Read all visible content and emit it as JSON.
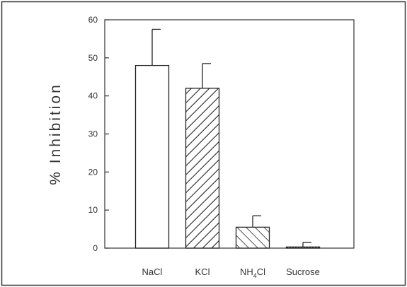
{
  "chart_data": {
    "type": "bar",
    "title": "",
    "xlabel": "",
    "ylabel": "% Inhibition",
    "ylim": [
      0,
      60
    ],
    "yticks": [
      0,
      10,
      20,
      30,
      40,
      50,
      60
    ],
    "grid": false,
    "categories": [
      {
        "label": "NaCl",
        "base": "NaCl",
        "sub": "",
        "tail": ""
      },
      {
        "label": "KCl",
        "base": "KCl",
        "sub": "",
        "tail": ""
      },
      {
        "label": "NH4Cl",
        "base": "NH",
        "sub": "4",
        "tail": "Cl"
      },
      {
        "label": "Sucrose",
        "base": "Sucrose",
        "sub": "",
        "tail": ""
      }
    ],
    "values": [
      48,
      42,
      5.5,
      0.3
    ],
    "errors": [
      9.5,
      6.5,
      3.0,
      1.2
    ],
    "patterns": [
      "none",
      "diagonal-up",
      "diagonal-down",
      "dotted"
    ]
  },
  "colors": {
    "frame": "#333333",
    "bar_fill": "#ffffff",
    "stroke": "#222222"
  }
}
